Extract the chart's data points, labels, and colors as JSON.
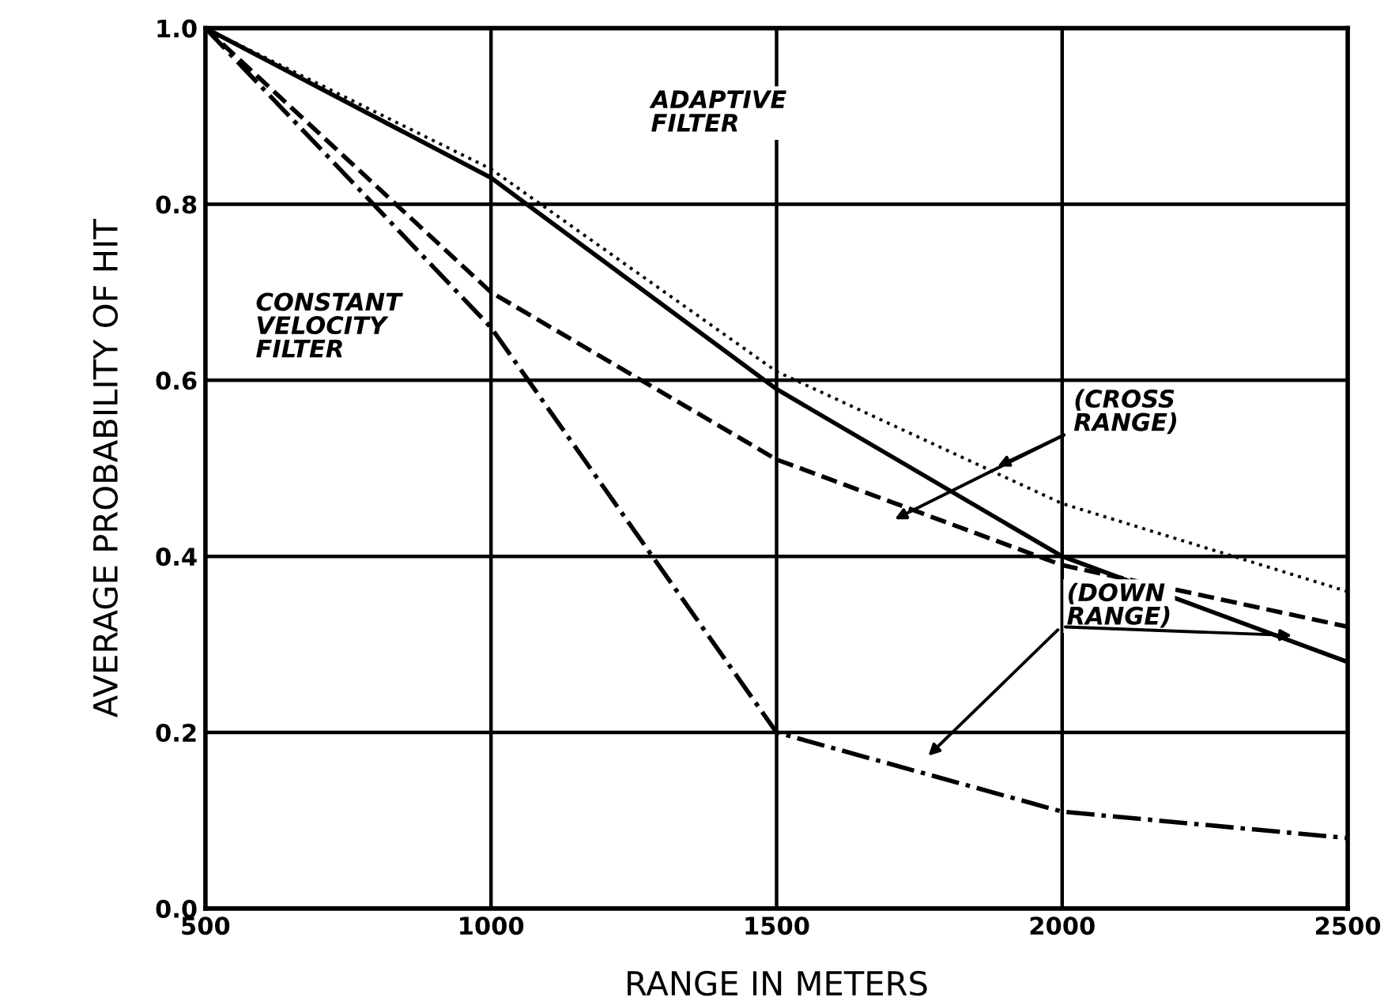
{
  "chart_data": {
    "type": "line",
    "xlabel": "RANGE IN METERS",
    "ylabel": "AVERAGE PROBABILITY OF HIT",
    "x": [
      500,
      1000,
      1500,
      2000,
      2500
    ],
    "series": [
      {
        "color": "#000000",
        "line_style": "solid",
        "values": [
          1.0,
          0.83,
          0.59,
          0.4,
          0.28
        ]
      },
      {
        "color": "#000000",
        "line_style": "dotted",
        "values": [
          1.0,
          0.84,
          0.61,
          0.46,
          0.36
        ]
      },
      {
        "color": "#000000",
        "line_style": "dashed",
        "values": [
          1.0,
          0.7,
          0.51,
          0.39,
          0.32
        ]
      },
      {
        "color": "#000000",
        "line_style": "dashdot",
        "values": [
          1.0,
          0.66,
          0.2,
          0.11,
          0.08
        ]
      }
    ],
    "xlim": [
      500,
      2500
    ],
    "ylim": [
      0,
      1
    ],
    "xticks": [
      500,
      1000,
      1500,
      2000,
      2500
    ],
    "yticks": [
      {
        "value": 0,
        "label": "0.0"
      },
      {
        "value": 0.2,
        "label": "0.2"
      },
      {
        "value": 0.4,
        "label": "0.4"
      },
      {
        "value": 0.6,
        "label": "0.6"
      },
      {
        "value": 0.8,
        "label": "0.8"
      },
      {
        "value": 1,
        "label": "1.0"
      }
    ],
    "grid": true,
    "marker": "none",
    "annotations": [
      "ADAPTIVE\nFILTER",
      "CONSTANT\nVELOCITY\nFILTER",
      {
        "text": "(CROSS\nRANGE)",
        "x": 1880,
        "y": 0.5
      },
      {
        "text": "(DOWN\nRANGE)",
        "x": 2410,
        "y": 0.31
      }
    ]
  }
}
